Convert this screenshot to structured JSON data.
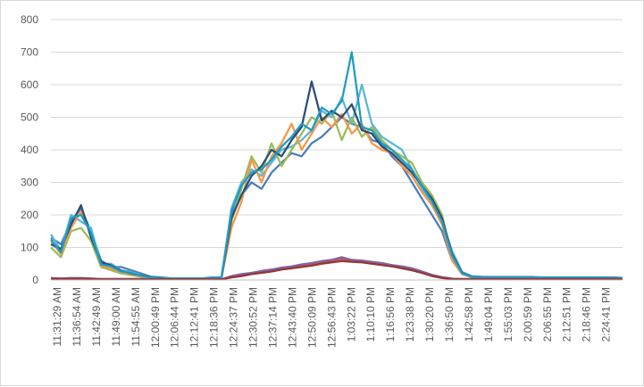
{
  "chart_data": {
    "type": "line",
    "title": "",
    "xlabel": "",
    "ylabel": "",
    "ylim": [
      0,
      800
    ],
    "y_ticks": [
      0,
      100,
      200,
      300,
      400,
      500,
      600,
      700,
      800
    ],
    "grid": "horizontal",
    "legend": "none",
    "x_tick_labels": [
      "11:31:29 AM",
      "11:36:54 AM",
      "11:42:49 AM",
      "11:49:00 AM",
      "11:54:55 AM",
      "12:00:49 PM",
      "12:06:44 PM",
      "12:12:41 PM",
      "12:18:36 PM",
      "12:24:37 PM",
      "12:30:52 PM",
      "12:37:14 PM",
      "12:43:40 PM",
      "12:50:09 PM",
      "12:56:43 PM",
      "1:03:22 PM",
      "1:10:10 PM",
      "1:16:56 PM",
      "1:23:38 PM",
      "1:30:20 PM",
      "1:36:50 PM",
      "1:42:58 PM",
      "1:49:04 PM",
      "1:55:03 PM",
      "2:00:59 PM",
      "2:06:55 PM",
      "2:12:51 PM",
      "2:18:46 PM",
      "2:24:41 PM"
    ],
    "series": [
      {
        "color": "#4A7EBB",
        "values": [
          130,
          110,
          180,
          220,
          150,
          60,
          40,
          40,
          30,
          20,
          10,
          8,
          5,
          5,
          5,
          5,
          8,
          8,
          200,
          260,
          300,
          280,
          330,
          360,
          390,
          380,
          420,
          440,
          470,
          500,
          480,
          470,
          430,
          420,
          380,
          350,
          300,
          250,
          200,
          150,
          60,
          20,
          10,
          8,
          8,
          8,
          8,
          8,
          8,
          8,
          8,
          8,
          8,
          8,
          8,
          8,
          8,
          5
        ]
      },
      {
        "color": "#5BB6D6",
        "values": [
          140,
          90,
          200,
          180,
          160,
          50,
          50,
          30,
          25,
          15,
          8,
          6,
          5,
          5,
          5,
          5,
          6,
          6,
          220,
          300,
          340,
          320,
          360,
          400,
          410,
          430,
          460,
          520,
          500,
          560,
          480,
          600,
          480,
          440,
          420,
          400,
          340,
          280,
          240,
          180,
          90,
          25,
          12,
          10,
          9,
          9,
          9,
          9,
          9,
          8,
          8,
          8,
          8,
          8,
          8,
          8,
          8,
          6
        ]
      },
      {
        "color": "#9BBB59",
        "values": [
          100,
          70,
          150,
          160,
          120,
          40,
          30,
          20,
          15,
          10,
          6,
          5,
          4,
          4,
          4,
          4,
          5,
          5,
          180,
          280,
          380,
          330,
          420,
          350,
          400,
          450,
          500,
          480,
          520,
          430,
          500,
          440,
          470,
          430,
          400,
          380,
          360,
          300,
          260,
          200,
          70,
          20,
          9,
          8,
          8,
          8,
          8,
          8,
          8,
          7,
          7,
          7,
          7,
          7,
          7,
          7,
          7,
          5
        ]
      },
      {
        "color": "#F79646",
        "values": [
          120,
          80,
          160,
          210,
          140,
          45,
          35,
          25,
          18,
          12,
          7,
          5,
          4,
          4,
          4,
          4,
          5,
          5,
          160,
          240,
          370,
          300,
          380,
          420,
          480,
          400,
          450,
          500,
          470,
          510,
          450,
          480,
          420,
          400,
          390,
          350,
          320,
          270,
          230,
          170,
          60,
          18,
          8,
          7,
          7,
          7,
          7,
          7,
          7,
          6,
          6,
          6,
          6,
          6,
          6,
          6,
          6,
          4
        ]
      },
      {
        "color": "#2C4D75",
        "values": [
          110,
          95,
          170,
          230,
          130,
          55,
          45,
          28,
          20,
          14,
          9,
          7,
          5,
          5,
          5,
          5,
          6,
          6,
          190,
          260,
          320,
          350,
          400,
          380,
          430,
          470,
          610,
          490,
          520,
          500,
          540,
          460,
          450,
          410,
          390,
          360,
          330,
          290,
          250,
          190,
          80,
          22,
          10,
          9,
          9,
          9,
          9,
          9,
          9,
          8,
          8,
          8,
          8,
          8,
          8,
          8,
          8,
          6
        ]
      },
      {
        "color": "#1F9BC4",
        "values": [
          125,
          85,
          190,
          200,
          145,
          48,
          42,
          26,
          22,
          13,
          8,
          6,
          5,
          5,
          5,
          5,
          6,
          6,
          210,
          290,
          330,
          340,
          370,
          410,
          440,
          480,
          460,
          530,
          510,
          550,
          700,
          470,
          460,
          420,
          400,
          370,
          340,
          290,
          240,
          180,
          75,
          20,
          10,
          8,
          8,
          8,
          8,
          8,
          8,
          7,
          7,
          7,
          7,
          7,
          7,
          7,
          7,
          5
        ]
      },
      {
        "color": "#C0504D",
        "values": [
          5,
          4,
          5,
          5,
          4,
          3,
          3,
          3,
          3,
          3,
          2,
          2,
          2,
          2,
          2,
          2,
          2,
          2,
          10,
          15,
          20,
          25,
          30,
          35,
          40,
          45,
          50,
          55,
          60,
          65,
          60,
          58,
          55,
          50,
          45,
          40,
          35,
          25,
          15,
          8,
          4,
          3,
          3,
          3,
          3,
          3,
          3,
          3,
          3,
          3,
          3,
          3,
          3,
          3,
          3,
          3,
          3,
          2
        ]
      },
      {
        "color": "#8064A2",
        "values": [
          6,
          5,
          6,
          6,
          5,
          3,
          3,
          3,
          3,
          3,
          2,
          2,
          2,
          2,
          2,
          2,
          2,
          2,
          12,
          18,
          22,
          28,
          32,
          38,
          42,
          48,
          52,
          58,
          62,
          70,
          62,
          60,
          56,
          52,
          46,
          42,
          36,
          26,
          16,
          9,
          4,
          3,
          3,
          3,
          3,
          3,
          3,
          3,
          3,
          3,
          3,
          3,
          3,
          3,
          3,
          3,
          3,
          2
        ]
      },
      {
        "color": "#943634",
        "values": [
          4,
          3,
          4,
          4,
          3,
          2,
          2,
          2,
          2,
          2,
          2,
          2,
          2,
          2,
          2,
          2,
          2,
          2,
          8,
          12,
          18,
          22,
          26,
          32,
          36,
          40,
          44,
          50,
          54,
          58,
          56,
          54,
          50,
          46,
          42,
          36,
          30,
          22,
          12,
          6,
          3,
          2,
          2,
          2,
          2,
          2,
          2,
          2,
          2,
          2,
          2,
          2,
          2,
          2,
          2,
          2,
          2,
          2
        ]
      }
    ]
  }
}
